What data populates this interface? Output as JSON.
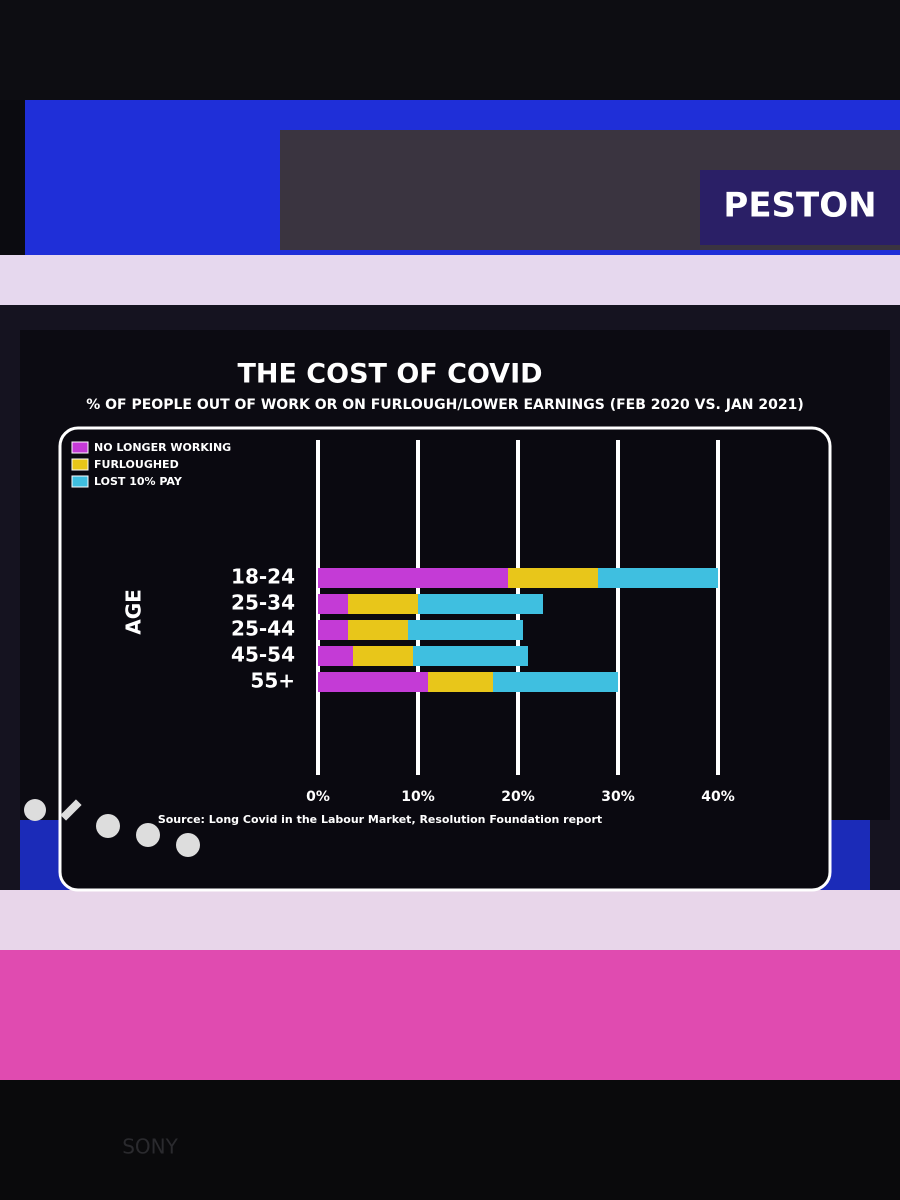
{
  "logo": "PESTON",
  "tv_brand": "SONY",
  "chart_data": {
    "type": "stacked-bar-horizontal",
    "title": "THE COST OF COVID",
    "subtitle": "% OF PEOPLE OUT OF WORK OR ON FURLOUGH/LOWER EARNINGS (FEB 2020 VS. JAN 2021)",
    "y_label": "AGE",
    "categories": [
      "18-24",
      "25-34",
      "25-44",
      "45-54",
      "55+"
    ],
    "series": [
      {
        "name": "NO LONGER WORKING",
        "color": "#c43bd6",
        "values": [
          19,
          3,
          3,
          3.5,
          11
        ]
      },
      {
        "name": "FURLOUGHED",
        "color": "#e8c61a",
        "values": [
          9,
          7,
          6,
          6,
          6.5
        ]
      },
      {
        "name": "LOST 10% PAY",
        "color": "#3fbfe0",
        "values": [
          12,
          12.5,
          11.5,
          11.5,
          12.5
        ]
      }
    ],
    "xlim": [
      0,
      40
    ],
    "xticks": [
      {
        "value": 0,
        "label": "0%"
      },
      {
        "value": 10,
        "label": "10%"
      },
      {
        "value": 20,
        "label": "20%"
      },
      {
        "value": 30,
        "label": "30%"
      },
      {
        "value": 40,
        "label": "40%"
      }
    ],
    "grid": true,
    "legend": "top-left",
    "source": "Source: Long Covid in the Labour Market, Resolution Foundation report"
  }
}
